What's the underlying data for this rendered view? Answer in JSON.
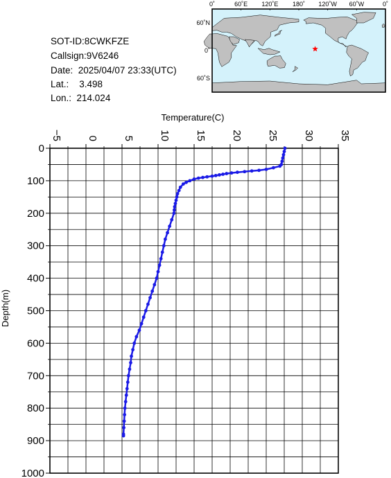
{
  "info": {
    "sot_id": "SOT-ID:8CWKFZE",
    "callsign": "Callsign:9V6246",
    "date": "Date:  2025/04/07 23:33(UTC)",
    "lat": "Lat.:    3.498",
    "lon": "Lon.:  214.024"
  },
  "map": {
    "lon_labels": [
      "0˚",
      "60˚E",
      "120˚E",
      "180˚",
      "120˚W",
      "60˚W",
      "0˚"
    ],
    "lat_labels": [
      "60˚N",
      "0˚",
      "60˚S"
    ],
    "marker_lon": 214.024,
    "marker_lat": 3.498,
    "ocean_color": "#d4f2fb",
    "land_color": "#c0c0c0",
    "marker_color": "#ff0000"
  },
  "chart_data": {
    "type": "line",
    "xlabel": "Temperature(C)",
    "ylabel": "Depth(m)",
    "xlim": [
      -5,
      35
    ],
    "ylim": [
      1000,
      0
    ],
    "x_ticks": [
      -5,
      0,
      5,
      10,
      15,
      20,
      25,
      30,
      35
    ],
    "y_ticks": [
      0,
      100,
      200,
      300,
      400,
      500,
      600,
      700,
      800,
      900,
      1000
    ],
    "grid": true,
    "line_color": "#1a1ae6",
    "series": [
      {
        "depth": [
          0,
          10,
          20,
          30,
          40,
          50,
          55,
          60,
          65,
          68,
          70,
          72,
          74,
          76,
          78,
          80,
          82,
          84,
          86,
          88,
          90,
          92,
          95,
          100,
          105,
          110,
          120,
          130,
          140,
          150,
          160,
          170,
          180,
          190,
          200,
          220,
          240,
          260,
          280,
          300,
          320,
          340,
          360,
          380,
          400,
          420,
          440,
          460,
          480,
          500,
          520,
          540,
          560,
          580,
          600,
          620,
          640,
          660,
          680,
          700,
          720,
          740,
          760,
          780,
          800,
          820,
          840,
          860,
          880,
          885
        ],
        "temperature": [
          27.6,
          27.5,
          27.4,
          27.3,
          27.2,
          27.1,
          26.9,
          26.0,
          25.0,
          24.0,
          23.0,
          22.0,
          21.0,
          20.2,
          19.5,
          19.0,
          18.5,
          18.0,
          17.5,
          16.8,
          16.2,
          15.6,
          15.0,
          14.4,
          13.9,
          13.5,
          13.1,
          12.9,
          12.7,
          12.6,
          12.5,
          12.4,
          12.3,
          12.25,
          12.2,
          11.9,
          11.6,
          11.3,
          11.0,
          10.8,
          10.6,
          10.4,
          10.2,
          10.0,
          9.8,
          9.5,
          9.2,
          8.9,
          8.6,
          8.3,
          8.0,
          7.7,
          7.4,
          7.0,
          6.7,
          6.5,
          6.3,
          6.2,
          6.05,
          5.9,
          5.8,
          5.7,
          5.6,
          5.5,
          5.4,
          5.35,
          5.3,
          5.25,
          5.2,
          5.2
        ]
      }
    ]
  }
}
